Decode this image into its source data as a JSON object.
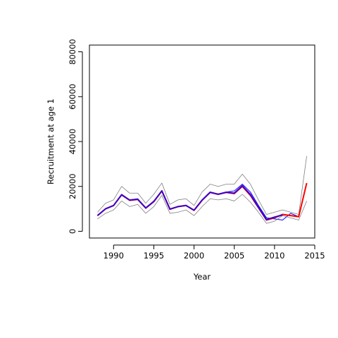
{
  "chart_data": {
    "type": "line",
    "title": "",
    "xlabel": "Year",
    "ylabel": "Recruitment at age 1",
    "xlim": [
      1987,
      2015
    ],
    "ylim": [
      -3000,
      83000
    ],
    "x_ticks": [
      1990,
      1995,
      2000,
      2005,
      2010,
      2015
    ],
    "y_ticks": [
      0,
      20000,
      40000,
      60000,
      80000
    ],
    "x_tick_labels": [
      "1990",
      "1995",
      "2000",
      "2005",
      "2010",
      "2015"
    ],
    "y_tick_labels": [
      "0",
      "20000",
      "40000",
      "60000",
      "80000"
    ],
    "grid": false,
    "legend": "none",
    "x": [
      1988,
      1989,
      1990,
      1991,
      1992,
      1993,
      1994,
      1995,
      1996,
      1997,
      1998,
      1999,
      2000,
      2001,
      2002,
      2003,
      2004,
      2005,
      2006,
      2007,
      2008,
      2009,
      2010,
      2011,
      2012,
      2013,
      2014
    ],
    "series": [
      {
        "color": "#0000ff",
        "width": 1,
        "values": [
          7000,
          10000,
          11500,
          16500,
          14000,
          14500,
          10500,
          13500,
          18000,
          10000,
          11000,
          11500,
          9500,
          14000,
          17500,
          16500,
          17500,
          18000,
          21000,
          17500,
          11500,
          6000,
          5500,
          5000,
          8000,
          6500,
          null
        ]
      },
      {
        "color": "#808080",
        "width": 0.8,
        "values": [
          8500,
          12500,
          14000,
          20000,
          17000,
          17000,
          12500,
          16500,
          21500,
          12000,
          14000,
          14500,
          11500,
          17500,
          21000,
          20000,
          21000,
          21000,
          25500,
          21000,
          14000,
          7500,
          8500,
          9500,
          8500,
          7500,
          33500
        ]
      },
      {
        "color": "#808080",
        "width": 0.8,
        "values": [
          5500,
          8000,
          9500,
          13500,
          11000,
          12000,
          8000,
          11000,
          16000,
          8000,
          8500,
          9500,
          7000,
          11000,
          14500,
          14000,
          14500,
          13500,
          16500,
          13000,
          8500,
          3500,
          4500,
          7000,
          6000,
          5000,
          13500
        ]
      },
      {
        "color": "#ff0000",
        "width": 2,
        "values": [
          7000,
          10000,
          11500,
          16200,
          13800,
          14200,
          10300,
          13200,
          18000,
          9800,
          11000,
          11500,
          9300,
          13800,
          17300,
          16500,
          17300,
          16800,
          20000,
          16000,
          10500,
          5000,
          6000,
          7500,
          7000,
          6500,
          21500
        ]
      },
      {
        "color": "#3c00c8",
        "width": 2,
        "values": [
          7000,
          10000,
          11500,
          16300,
          13900,
          14300,
          10400,
          13300,
          18000,
          9900,
          11000,
          11500,
          9400,
          13900,
          17400,
          16500,
          17400,
          17000,
          20300,
          16400,
          10700,
          5200,
          6300,
          7300,
          null,
          null,
          null
        ]
      }
    ]
  }
}
